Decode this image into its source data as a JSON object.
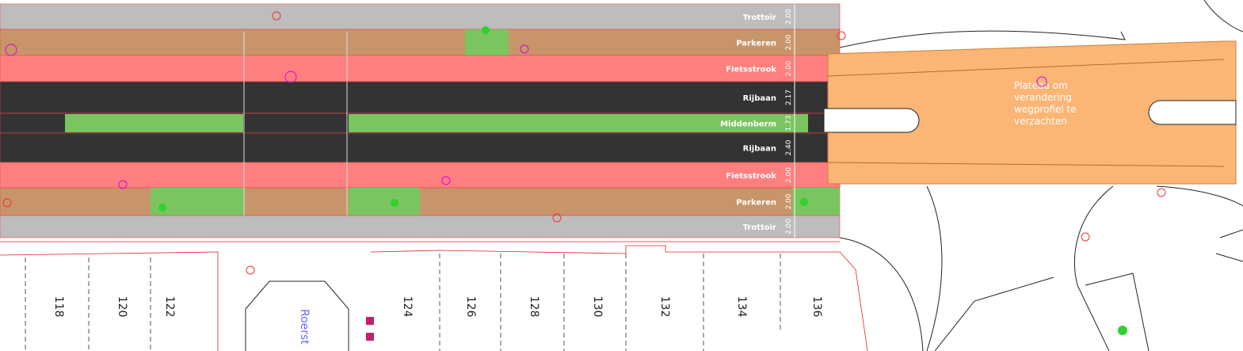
{
  "lanes": [
    {
      "label": "Trottoir",
      "width": "2.00"
    },
    {
      "label": "Parkeren",
      "width": "2.00"
    },
    {
      "label": "Fietsstrook",
      "width": "2.00"
    },
    {
      "label": "Rijbaan",
      "width": "2.17"
    },
    {
      "label": "Middenberm",
      "width": "1.73"
    },
    {
      "label": "Rijbaan",
      "width": "2.40"
    },
    {
      "label": "Fietsstrook",
      "width": "2.00"
    },
    {
      "label": "Parkeren",
      "width": "2.00"
    },
    {
      "label": "Trottoir",
      "width": "2.00"
    }
  ],
  "plateau": {
    "lines": [
      "Plateau om",
      "verandering",
      "wegprofiel te",
      "verzachten"
    ]
  },
  "house_numbers": [
    "118",
    "120",
    "122",
    "124",
    "126",
    "128",
    "130",
    "132",
    "134",
    "136"
  ],
  "street": "Roerst"
}
